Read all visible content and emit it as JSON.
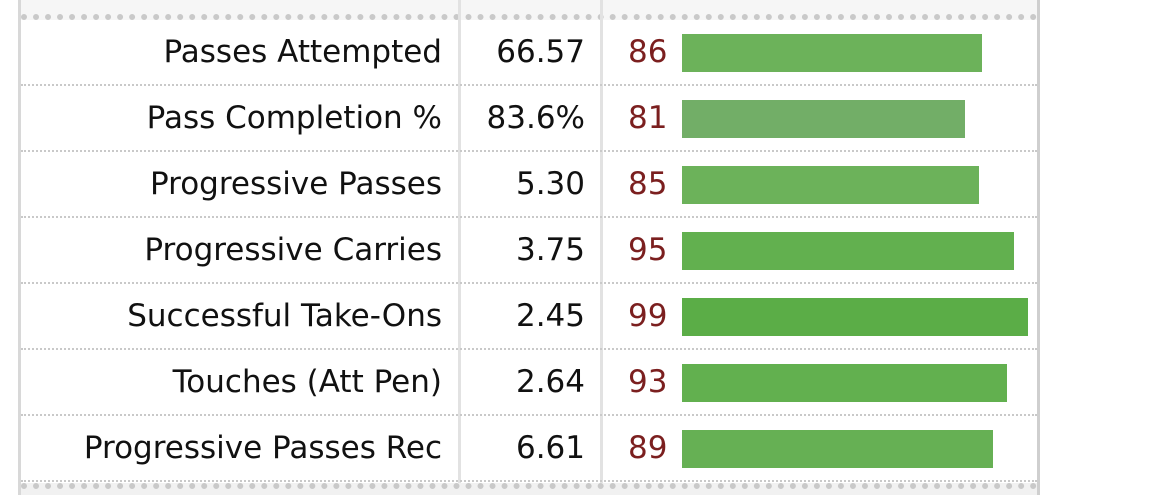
{
  "rows": [
    {
      "label": "Passes Attempted",
      "value": "66.57",
      "percentile": "86",
      "percentile_num": 86,
      "color": "#6cb25a"
    },
    {
      "label": "Pass Completion %",
      "value": "83.6%",
      "percentile": "81",
      "percentile_num": 81,
      "color": "#72ae67"
    },
    {
      "label": "Progressive Passes",
      "value": "5.30",
      "percentile": "85",
      "percentile_num": 85,
      "color": "#6cb25a"
    },
    {
      "label": "Progressive Carries",
      "value": "3.75",
      "percentile": "95",
      "percentile_num": 95,
      "color": "#62b04f"
    },
    {
      "label": "Successful Take-Ons",
      "value": "2.45",
      "percentile": "99",
      "percentile_num": 99,
      "color": "#5bad47"
    },
    {
      "label": "Touches (Att Pen)",
      "value": "2.64",
      "percentile": "93",
      "percentile_num": 93,
      "color": "#62b04f"
    },
    {
      "label": "Progressive Passes Rec",
      "value": "6.61",
      "percentile": "89",
      "percentile_num": 89,
      "color": "#66b054"
    }
  ]
}
